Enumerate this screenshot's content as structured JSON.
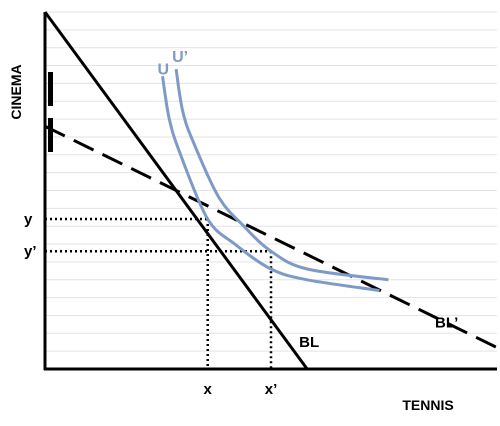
{
  "colors": {
    "background": "#ffffff",
    "grid": "#e3e3e3",
    "axis": "#000000",
    "budget_line": "#000000",
    "indifference_curve": "#7f9ac6"
  },
  "chart_data": {
    "type": "line",
    "title": "",
    "xlabel": "TENNIS",
    "ylabel": "CINEMA",
    "xlim": [
      0,
      100
    ],
    "ylim": [
      0,
      100
    ],
    "grid": "horizontal",
    "x_ticks": [
      {
        "label": "x",
        "value": 36
      },
      {
        "label": "x’",
        "value": 50
      }
    ],
    "y_ticks": [
      {
        "label": "y",
        "value": 42
      },
      {
        "label": "y’",
        "value": 33
      }
    ],
    "series": [
      {
        "name": "BL",
        "style": "solid",
        "color": "#000000",
        "points": [
          [
            0,
            100
          ],
          [
            58,
            0
          ]
        ]
      },
      {
        "name": "BL’",
        "style": "dashed",
        "color": "#000000",
        "points": [
          [
            0,
            68
          ],
          [
            100,
            6
          ]
        ]
      },
      {
        "name": "U",
        "style": "solid",
        "color": "#7f9ac6",
        "points": [
          [
            26,
            82
          ],
          [
            27.5,
            70
          ],
          [
            30,
            60
          ],
          [
            36,
            42
          ],
          [
            42,
            35
          ],
          [
            50,
            28
          ],
          [
            58,
            25
          ],
          [
            74,
            22
          ]
        ]
      },
      {
        "name": "U’",
        "style": "solid",
        "color": "#7f9ac6",
        "points": [
          [
            29,
            84
          ],
          [
            30.5,
            72
          ],
          [
            33,
            63
          ],
          [
            38.5,
            48
          ],
          [
            44,
            40
          ],
          [
            50,
            33
          ],
          [
            58,
            28
          ],
          [
            76,
            25
          ]
        ]
      }
    ],
    "guides": [
      {
        "from": "y",
        "to_point": [
          36,
          42
        ]
      },
      {
        "from": "y’",
        "to_point": [
          50,
          33
        ]
      }
    ]
  }
}
